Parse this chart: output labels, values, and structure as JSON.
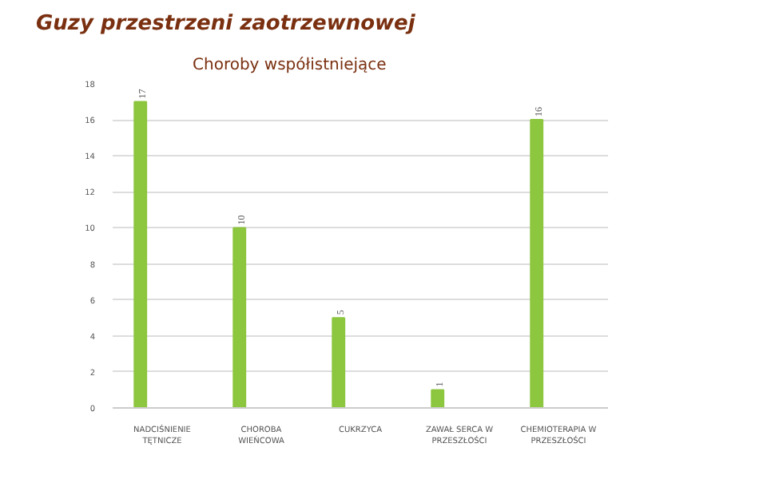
{
  "chart_data": {
    "type": "bar",
    "title": "Guzy przestrzeni zaotrzewnowej",
    "subtitle": "Choroby współistniejące",
    "categories": [
      "NADCIŚNIENIE TĘTNICZE",
      "CHOROBA WIEŃCOWA",
      "CUKRZYCA",
      "ZAWAŁ SERCA W PRZESZŁOŚCI",
      "CHEMIOTERAPIA W PRZESZŁOŚCI"
    ],
    "values": [
      17,
      10,
      5,
      1,
      16
    ],
    "color": "#8dc63f",
    "ylim": [
      0,
      18
    ],
    "yticks": [
      0,
      2,
      4,
      6,
      8,
      10,
      12,
      14,
      16,
      18
    ],
    "grid": "y",
    "data_labels": true
  }
}
